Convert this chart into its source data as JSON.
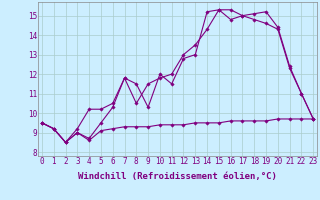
{
  "x_ticks": [
    0,
    1,
    2,
    3,
    4,
    5,
    6,
    7,
    8,
    9,
    10,
    11,
    12,
    13,
    14,
    15,
    16,
    17,
    18,
    19,
    20,
    21,
    22,
    23
  ],
  "y_ticks": [
    8,
    9,
    10,
    11,
    12,
    13,
    14,
    15
  ],
  "ylim": [
    7.8,
    15.7
  ],
  "xlim": [
    -0.3,
    23.3
  ],
  "xlabel": "Windchill (Refroidissement éolien,°C)",
  "line1_x": [
    0,
    1,
    2,
    3,
    4,
    5,
    6,
    7,
    8,
    9,
    10,
    11,
    12,
    13,
    14,
    15,
    16,
    17,
    18,
    19,
    20,
    21,
    22,
    23
  ],
  "line1_y": [
    9.5,
    9.2,
    8.5,
    9.0,
    8.6,
    9.1,
    9.2,
    9.3,
    9.3,
    9.3,
    9.4,
    9.4,
    9.4,
    9.5,
    9.5,
    9.5,
    9.6,
    9.6,
    9.6,
    9.6,
    9.7,
    9.7,
    9.7,
    9.7
  ],
  "line2_x": [
    0,
    1,
    2,
    3,
    4,
    5,
    6,
    7,
    8,
    9,
    10,
    11,
    12,
    13,
    14,
    15,
    16,
    17,
    18,
    19,
    20,
    21,
    22,
    23
  ],
  "line2_y": [
    9.5,
    9.2,
    8.5,
    9.0,
    8.7,
    9.5,
    10.3,
    11.8,
    11.5,
    10.3,
    12.0,
    11.5,
    12.8,
    13.0,
    15.2,
    15.3,
    15.3,
    15.0,
    15.1,
    15.2,
    14.4,
    12.4,
    11.0,
    9.7
  ],
  "line3_x": [
    0,
    1,
    2,
    3,
    4,
    5,
    6,
    7,
    8,
    9,
    10,
    11,
    12,
    13,
    14,
    15,
    16,
    17,
    18,
    19,
    20,
    21,
    22,
    23
  ],
  "line3_y": [
    9.5,
    9.2,
    8.5,
    9.2,
    10.2,
    10.2,
    10.5,
    11.8,
    10.5,
    11.5,
    11.8,
    12.0,
    13.0,
    13.5,
    14.3,
    15.3,
    14.8,
    15.0,
    14.8,
    14.6,
    14.3,
    12.3,
    11.0,
    9.7
  ],
  "line_color": "#800080",
  "bg_color": "#cceeff",
  "grid_color": "#aacccc",
  "marker": "D",
  "marker_size": 1.8,
  "linewidth": 0.8,
  "tick_fontsize": 5.5,
  "xlabel_fontsize": 6.5
}
